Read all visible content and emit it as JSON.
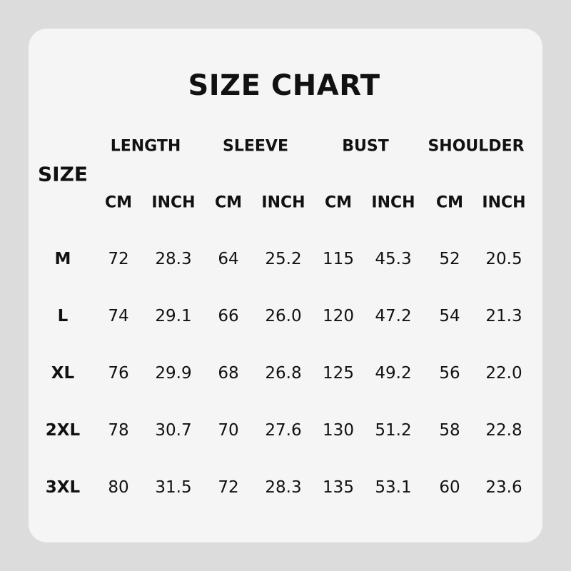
{
  "title": "SIZE CHART",
  "size_header": "SIZE",
  "groups": [
    "LENGTH",
    "SLEEVE",
    "BUST",
    "SHOULDER"
  ],
  "units": [
    "CM",
    "INCH",
    "CM",
    "INCH",
    "CM",
    "INCH",
    "CM",
    "INCH"
  ],
  "rows": [
    {
      "size": "M",
      "values": [
        "72",
        "28.3",
        "64",
        "25.2",
        "115",
        "45.3",
        "52",
        "20.5"
      ]
    },
    {
      "size": "L",
      "values": [
        "74",
        "29.1",
        "66",
        "26.0",
        "120",
        "47.2",
        "54",
        "21.3"
      ]
    },
    {
      "size": "XL",
      "values": [
        "76",
        "29.9",
        "68",
        "26.8",
        "125",
        "49.2",
        "56",
        "22.0"
      ]
    },
    {
      "size": "2XL",
      "values": [
        "78",
        "30.7",
        "70",
        "27.6",
        "130",
        "51.2",
        "58",
        "22.8"
      ]
    },
    {
      "size": "3XL",
      "values": [
        "80",
        "31.5",
        "72",
        "28.3",
        "135",
        "53.1",
        "60",
        "23.6"
      ]
    }
  ]
}
